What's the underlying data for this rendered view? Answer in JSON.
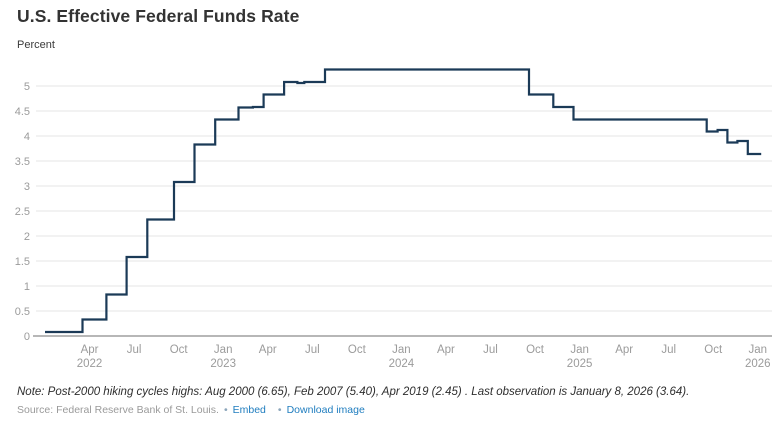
{
  "header": {
    "title": "U.S. Effective Federal Funds Rate",
    "units_label": "Percent"
  },
  "chart_data": {
    "type": "line",
    "line_style": "step-after",
    "title": "U.S. Effective Federal Funds Rate",
    "xlabel": "",
    "ylabel": "Percent",
    "ylim": [
      0,
      5.6
    ],
    "grid": "horizontal",
    "legend": "none",
    "yticks": [
      0,
      0.5,
      1,
      1.5,
      2,
      2.5,
      3,
      3.5,
      4,
      4.5,
      5
    ],
    "xticks": [
      {
        "date": "2022-04-01",
        "label": "Apr",
        "year": "2022"
      },
      {
        "date": "2022-07-01",
        "label": "Jul",
        "year": ""
      },
      {
        "date": "2022-10-01",
        "label": "Oct",
        "year": ""
      },
      {
        "date": "2023-01-01",
        "label": "Jan",
        "year": "2023"
      },
      {
        "date": "2023-04-01",
        "label": "Apr",
        "year": ""
      },
      {
        "date": "2023-07-01",
        "label": "Jul",
        "year": ""
      },
      {
        "date": "2023-10-01",
        "label": "Oct",
        "year": ""
      },
      {
        "date": "2024-01-01",
        "label": "Jan",
        "year": "2024"
      },
      {
        "date": "2024-04-01",
        "label": "Apr",
        "year": ""
      },
      {
        "date": "2024-07-01",
        "label": "Jul",
        "year": ""
      },
      {
        "date": "2024-10-01",
        "label": "Oct",
        "year": ""
      },
      {
        "date": "2025-01-01",
        "label": "Jan",
        "year": "2025"
      },
      {
        "date": "2025-04-01",
        "label": "Apr",
        "year": ""
      },
      {
        "date": "2025-07-01",
        "label": "Jul",
        "year": ""
      },
      {
        "date": "2025-10-01",
        "label": "Oct",
        "year": ""
      },
      {
        "date": "2026-01-01",
        "label": "Jan",
        "year": "2026"
      }
    ],
    "series": [
      {
        "name": "Effective Federal Funds Rate",
        "points": [
          [
            "2022-01-01",
            0.08
          ],
          [
            "2022-03-17",
            0.33
          ],
          [
            "2022-05-05",
            0.83
          ],
          [
            "2022-06-16",
            1.58
          ],
          [
            "2022-07-28",
            2.33
          ],
          [
            "2022-09-22",
            3.08
          ],
          [
            "2022-11-03",
            3.83
          ],
          [
            "2022-12-15",
            4.33
          ],
          [
            "2023-02-02",
            4.57
          ],
          [
            "2023-03-01",
            4.58
          ],
          [
            "2023-03-23",
            4.83
          ],
          [
            "2023-05-04",
            5.08
          ],
          [
            "2023-06-01",
            5.06
          ],
          [
            "2023-06-15",
            5.08
          ],
          [
            "2023-07-27",
            5.33
          ],
          [
            "2024-09-19",
            4.83
          ],
          [
            "2024-11-08",
            4.58
          ],
          [
            "2024-12-19",
            4.33
          ],
          [
            "2025-09-18",
            4.09
          ],
          [
            "2025-10-10",
            4.12
          ],
          [
            "2025-10-30",
            3.87
          ],
          [
            "2025-11-20",
            3.9
          ],
          [
            "2025-12-11",
            3.64
          ],
          [
            "2026-01-08",
            3.64
          ]
        ]
      }
    ],
    "last_observation": {
      "date": "2026-01-08",
      "value": 3.64
    },
    "colors": {
      "line": "#1b3a57",
      "grid": "#e5e5e5",
      "axis": "#8c8c8c",
      "tick_label": "#9b9b9b"
    }
  },
  "footer": {
    "note": "Note: Post-2000 hiking cycles highs: Aug 2000 (6.65), Feb 2007 (5.40), Apr 2019 (2.45) . Last observation is January 8, 2026 (3.64).",
    "source_text": "Source: Federal Reserve Bank of St. Louis.",
    "separator": "•",
    "links": [
      {
        "label": "Embed"
      },
      {
        "label": "Download image"
      }
    ],
    "link_color": "#1f7dbf"
  }
}
